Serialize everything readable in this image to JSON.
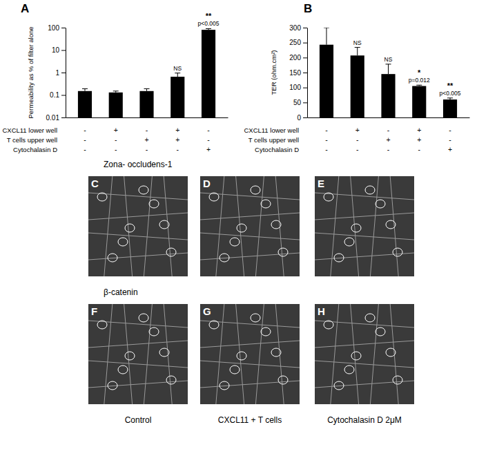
{
  "chart_data": [
    {
      "type": "bar",
      "title": "A",
      "y_label": "Permeability as % of filter alone",
      "categories": [
        null,
        null,
        null,
        null,
        null
      ],
      "values": [
        0.15,
        0.13,
        0.15,
        0.65,
        80
      ],
      "errors": [
        0.04,
        0.02,
        0.04,
        0.3,
        10
      ],
      "annotations": [
        null,
        null,
        null,
        [
          "NS"
        ],
        [
          "**",
          "p<0.005"
        ]
      ],
      "conditions": [
        {
          "name": "CXCL11 lower well",
          "marks": [
            "-",
            "+",
            "-",
            "+",
            "-"
          ]
        },
        {
          "name": "T cells upper well",
          "marks": [
            "-",
            "-",
            "+",
            "+",
            "-"
          ]
        },
        {
          "name": "Cytochalasin D",
          "marks": [
            "-",
            "-",
            "-",
            "-",
            "+"
          ]
        }
      ],
      "color": "#000000",
      "log": "y",
      "grid": false,
      "ylim": [
        0.01,
        100
      ],
      "yticks": [
        0.01,
        0.1,
        1,
        10,
        100
      ]
    },
    {
      "type": "bar",
      "title": "B",
      "y_label": "TER (ohm.cm²)",
      "categories": [
        null,
        null,
        null,
        null,
        null
      ],
      "values": [
        243,
        207,
        145,
        105,
        60
      ],
      "errors": [
        57,
        27,
        33,
        3,
        5
      ],
      "annotations": [
        null,
        [
          "NS"
        ],
        [
          "NS"
        ],
        [
          "*",
          "p=0.012"
        ],
        [
          "**",
          "p<0.005"
        ]
      ],
      "conditions": [
        {
          "name": "CXCL11 lower well",
          "marks": [
            "-",
            "+",
            "-",
            "+",
            "-"
          ]
        },
        {
          "name": "T cells upper well",
          "marks": [
            "-",
            "-",
            "+",
            "+",
            "-"
          ]
        },
        {
          "name": "Cytochalasin D",
          "marks": [
            "-",
            "-",
            "-",
            "-",
            "+"
          ]
        }
      ],
      "color": "#000000",
      "grid": false,
      "ylim": [
        0,
        300
      ],
      "yticks": [
        0,
        50,
        100,
        150,
        200,
        250,
        300
      ]
    }
  ],
  "images": {
    "rows": [
      {
        "label": "Zona- occludens-1",
        "panels": [
          "C",
          "D",
          "E"
        ]
      },
      {
        "label": "β-catenin",
        "panels": [
          "F",
          "G",
          "H"
        ]
      }
    ],
    "columns": [
      "Control",
      "CXCL11 + T cells",
      "Cytochalasin D  2μM"
    ]
  }
}
